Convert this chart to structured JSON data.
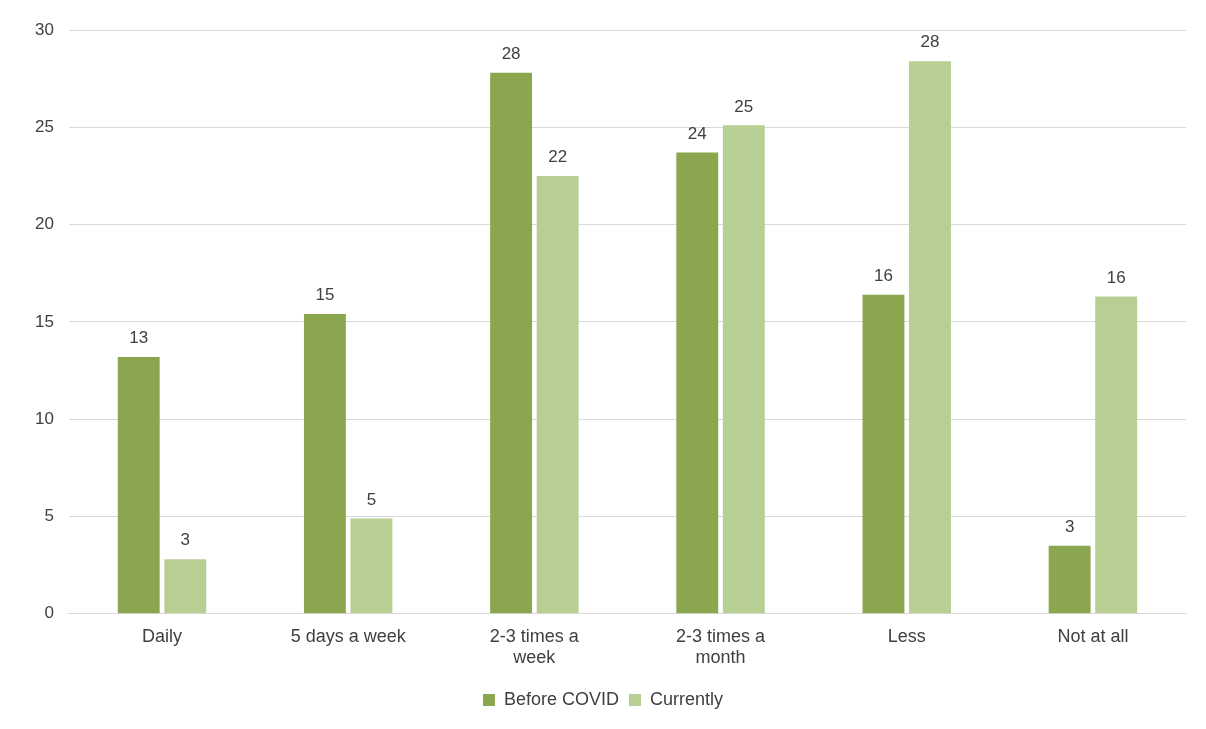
{
  "chart_data": {
    "type": "bar",
    "categories": [
      "Daily",
      "5 days a week",
      "2-3 times a week",
      "2-3 times a month",
      "Less",
      "Not at all"
    ],
    "series": [
      {
        "name": "Before COVID",
        "color": "#8aa64e",
        "values": [
          13.2,
          15.4,
          27.8,
          23.7,
          16.4,
          3.5
        ],
        "value_labels": [
          "13",
          "15",
          "28",
          "24",
          "16",
          "3"
        ]
      },
      {
        "name": "Currently",
        "color": "#b8cf94",
        "values": [
          2.8,
          4.9,
          22.5,
          25.1,
          28.4,
          16.3
        ],
        "value_labels": [
          "3",
          "5",
          "22",
          "25",
          "28",
          "16"
        ]
      }
    ],
    "ylim": [
      0,
      30
    ],
    "yticks": [
      0,
      5,
      10,
      15,
      20,
      25,
      30
    ],
    "grid": "y",
    "legend": "bottom"
  }
}
